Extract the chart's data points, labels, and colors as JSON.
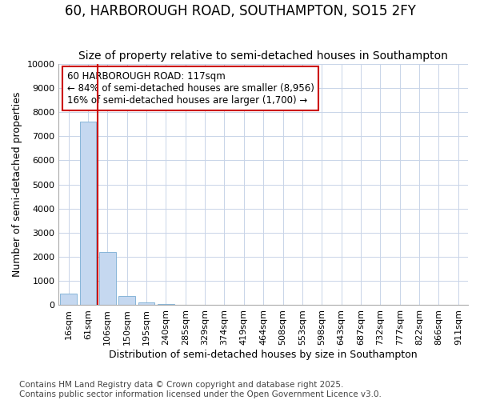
{
  "title": "60, HARBOROUGH ROAD, SOUTHAMPTON, SO15 2FY",
  "subtitle": "Size of property relative to semi-detached houses in Southampton",
  "xlabel": "Distribution of semi-detached houses by size in Southampton",
  "ylabel": "Number of semi-detached properties",
  "categories": [
    "16sqm",
    "61sqm",
    "106sqm",
    "150sqm",
    "195sqm",
    "240sqm",
    "285sqm",
    "329sqm",
    "374sqm",
    "419sqm",
    "464sqm",
    "508sqm",
    "553sqm",
    "598sqm",
    "643sqm",
    "687sqm",
    "732sqm",
    "777sqm",
    "822sqm",
    "866sqm",
    "911sqm"
  ],
  "values": [
    490,
    7600,
    2200,
    380,
    130,
    60,
    0,
    0,
    0,
    0,
    0,
    0,
    0,
    0,
    0,
    0,
    0,
    0,
    0,
    0,
    0
  ],
  "bar_color": "#c5d8f0",
  "bar_edge_color": "#7aaed4",
  "vline_x": 1.5,
  "vline_color": "#cc0000",
  "annotation_line1": "60 HARBOROUGH ROAD: 117sqm",
  "annotation_line2": "← 84% of semi-detached houses are smaller (8,956)",
  "annotation_line3": "16% of semi-detached houses are larger (1,700) →",
  "annotation_box_color": "#cc0000",
  "annotation_box_bg": "#ffffff",
  "ylim": [
    0,
    10000
  ],
  "yticks": [
    0,
    1000,
    2000,
    3000,
    4000,
    5000,
    6000,
    7000,
    8000,
    9000,
    10000
  ],
  "grid_color": "#c8d4e8",
  "bg_color": "#ffffff",
  "footer": "Contains HM Land Registry data © Crown copyright and database right 2025.\nContains public sector information licensed under the Open Government Licence v3.0.",
  "title_fontsize": 12,
  "subtitle_fontsize": 10,
  "axis_label_fontsize": 9,
  "tick_fontsize": 8,
  "annotation_fontsize": 8.5,
  "footer_fontsize": 7.5
}
